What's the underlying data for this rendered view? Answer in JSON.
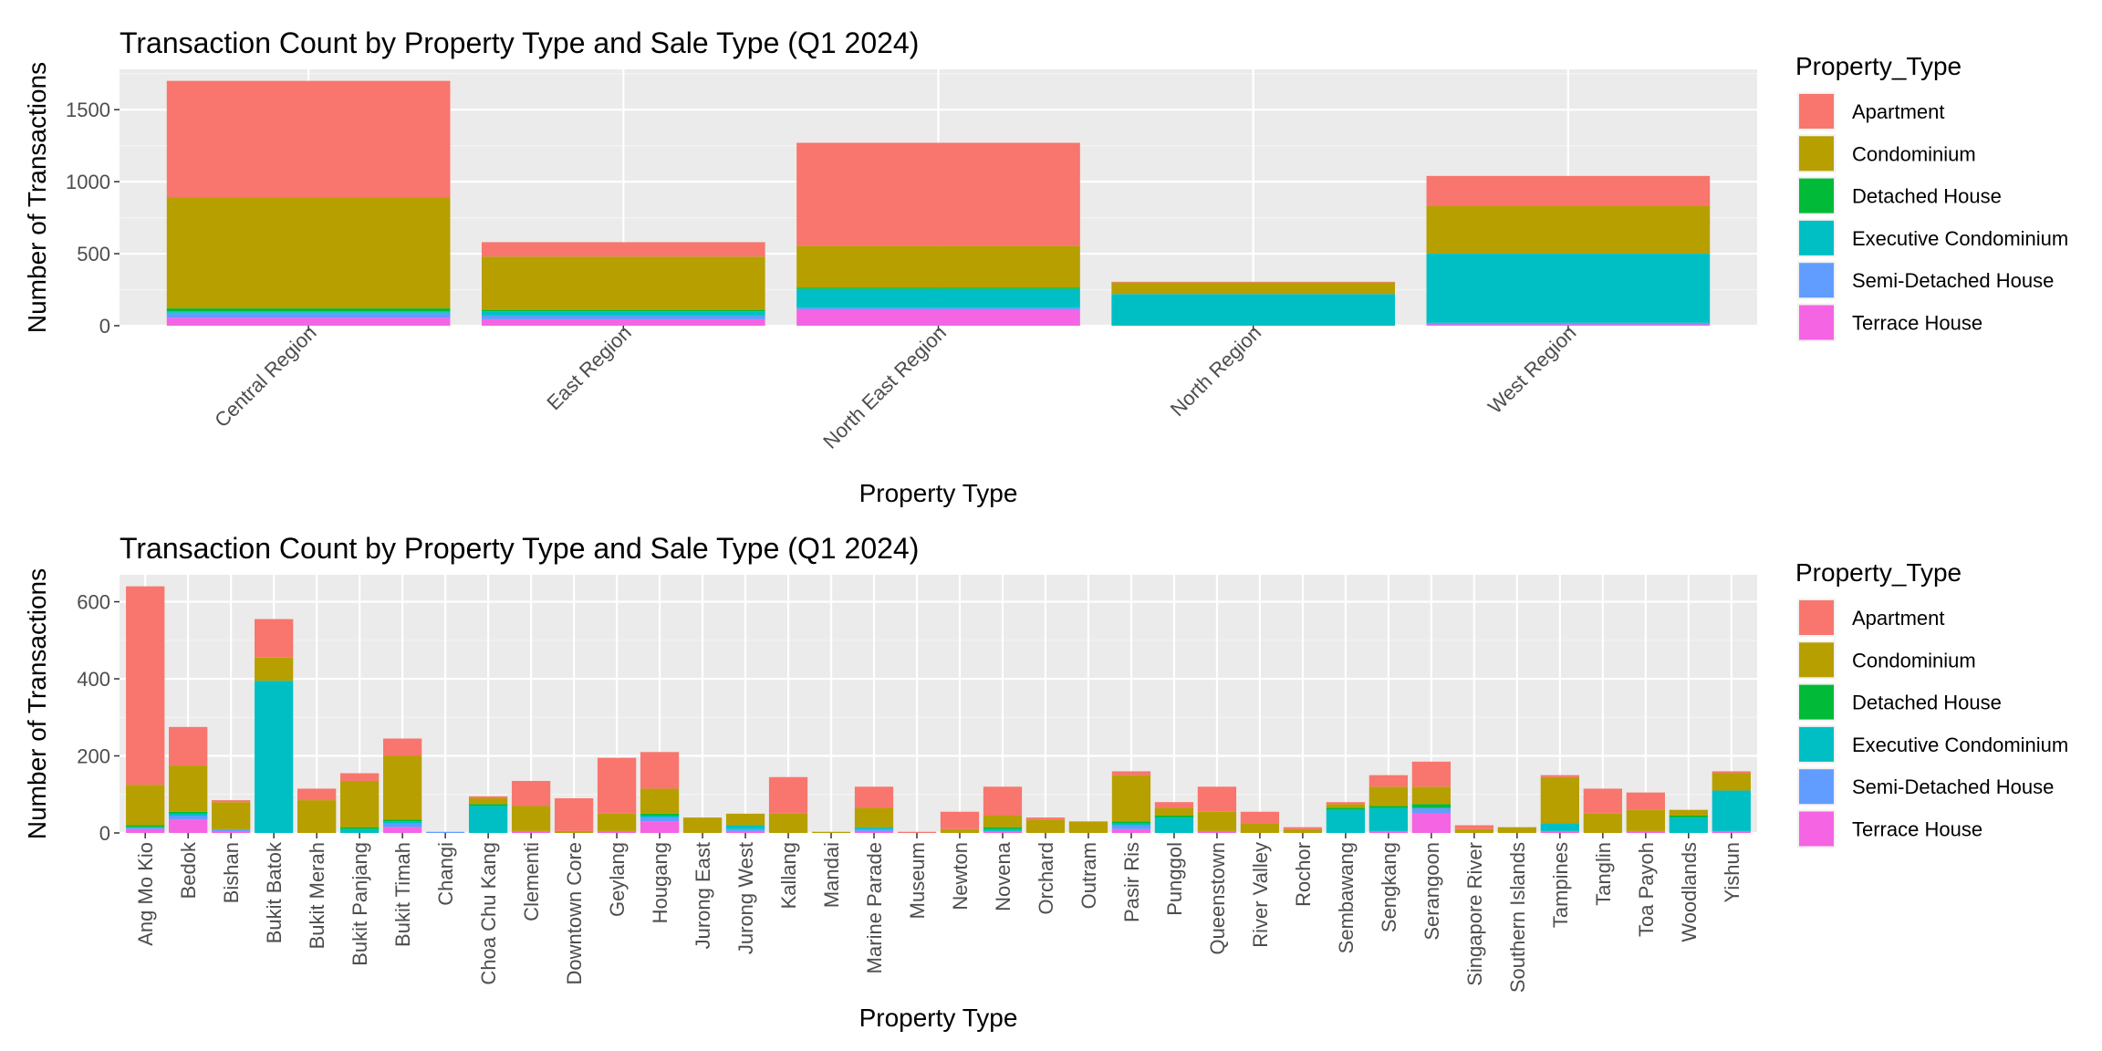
{
  "chart_data": [
    {
      "type": "bar",
      "stacked": true,
      "title": "Transaction Count by Property Type and Sale Type (Q1 2024)",
      "xlabel": "Property Type",
      "ylabel": "Number of Transactions",
      "ylim": [
        0,
        1780
      ],
      "yticks": [
        0,
        500,
        1000,
        1500
      ],
      "grid": true,
      "legend_position": "right",
      "legend_title": "Property_Type",
      "categories": [
        "Central Region",
        "East Region",
        "North East Region",
        "North Region",
        "West Region"
      ],
      "series": [
        {
          "name": "Terrace House",
          "color": "#F564E3",
          "values": [
            55,
            45,
            110,
            0,
            10
          ]
        },
        {
          "name": "Semi-Detached House",
          "color": "#619CFF",
          "values": [
            35,
            25,
            15,
            0,
            10
          ]
        },
        {
          "name": "Executive Condominium",
          "color": "#00BFC4",
          "values": [
            10,
            30,
            130,
            220,
            480
          ]
        },
        {
          "name": "Detached House",
          "color": "#00BA38",
          "values": [
            20,
            10,
            10,
            0,
            0
          ]
        },
        {
          "name": "Condominium",
          "color": "#B79F00",
          "values": [
            770,
            370,
            290,
            80,
            330
          ]
        },
        {
          "name": "Apartment",
          "color": "#F8766D",
          "values": [
            810,
            100,
            715,
            5,
            210
          ]
        }
      ]
    },
    {
      "type": "bar",
      "stacked": true,
      "title": "Transaction Count by Property Type and Sale Type (Q1 2024)",
      "xlabel": "Property Type",
      "ylabel": "Number of Transactions",
      "ylim": [
        0,
        670
      ],
      "yticks": [
        0,
        200,
        400,
        600
      ],
      "grid": true,
      "legend_position": "right",
      "legend_title": "Property_Type",
      "categories": [
        "Ang Mo Kio",
        "Bedok",
        "Bishan",
        "Bukit Batok",
        "Bukit Merah",
        "Bukit Panjang",
        "Bukit Timah",
        "Changi",
        "Choa Chu Kang",
        "Clementi",
        "Downtown Core",
        "Geylang",
        "Hougang",
        "Jurong East",
        "Jurong West",
        "Kallang",
        "Mandai",
        "Marine Parade",
        "Museum",
        "Newton",
        "Novena",
        "Orchard",
        "Outram",
        "Pasir Ris",
        "Punggol",
        "Queenstown",
        "River Valley",
        "Rochor",
        "Sembawang",
        "Sengkang",
        "Serangoon",
        "Singapore River",
        "Southern Islands",
        "Tampines",
        "Tanglin",
        "Toa Payoh",
        "Woodlands",
        "Yishun"
      ],
      "series": [
        {
          "name": "Terrace House",
          "color": "#F564E3",
          "values": [
            10,
            35,
            5,
            0,
            0,
            0,
            15,
            0,
            0,
            5,
            0,
            5,
            30,
            0,
            5,
            0,
            0,
            5,
            0,
            0,
            5,
            0,
            0,
            10,
            0,
            5,
            0,
            0,
            0,
            5,
            50,
            0,
            0,
            5,
            0,
            5,
            0,
            5
          ]
        },
        {
          "name": "Semi-Detached House",
          "color": "#619CFF",
          "values": [
            5,
            10,
            5,
            0,
            0,
            0,
            10,
            3,
            0,
            0,
            0,
            0,
            10,
            0,
            5,
            0,
            0,
            5,
            0,
            0,
            0,
            0,
            0,
            10,
            0,
            0,
            0,
            0,
            0,
            0,
            15,
            0,
            0,
            0,
            0,
            0,
            0,
            0
          ]
        },
        {
          "name": "Executive Condominium",
          "color": "#00BFC4",
          "values": [
            0,
            5,
            0,
            395,
            0,
            10,
            5,
            0,
            70,
            0,
            0,
            0,
            5,
            0,
            10,
            0,
            0,
            5,
            0,
            0,
            5,
            0,
            0,
            5,
            40,
            0,
            0,
            0,
            60,
            60,
            0,
            0,
            0,
            20,
            0,
            0,
            40,
            105
          ]
        },
        {
          "name": "Detached House",
          "color": "#00BA38",
          "values": [
            5,
            5,
            0,
            0,
            0,
            5,
            5,
            0,
            5,
            0,
            0,
            0,
            5,
            0,
            0,
            0,
            0,
            0,
            0,
            0,
            5,
            0,
            0,
            5,
            5,
            0,
            0,
            0,
            5,
            5,
            10,
            0,
            0,
            0,
            0,
            0,
            5,
            0
          ]
        },
        {
          "name": "Condominium",
          "color": "#B79F00",
          "values": [
            105,
            120,
            70,
            60,
            85,
            120,
            165,
            0,
            15,
            65,
            5,
            45,
            65,
            40,
            30,
            50,
            3,
            50,
            0,
            10,
            30,
            35,
            30,
            120,
            20,
            50,
            25,
            10,
            10,
            50,
            45,
            10,
            15,
            120,
            50,
            55,
            15,
            45
          ]
        },
        {
          "name": "Apartment",
          "color": "#F8766D",
          "values": [
            515,
            100,
            5,
            100,
            30,
            20,
            45,
            0,
            5,
            65,
            85,
            145,
            95,
            0,
            0,
            95,
            0,
            55,
            3,
            45,
            75,
            5,
            0,
            10,
            15,
            65,
            30,
            5,
            5,
            30,
            65,
            10,
            0,
            5,
            65,
            45,
            0,
            5
          ]
        }
      ]
    }
  ]
}
